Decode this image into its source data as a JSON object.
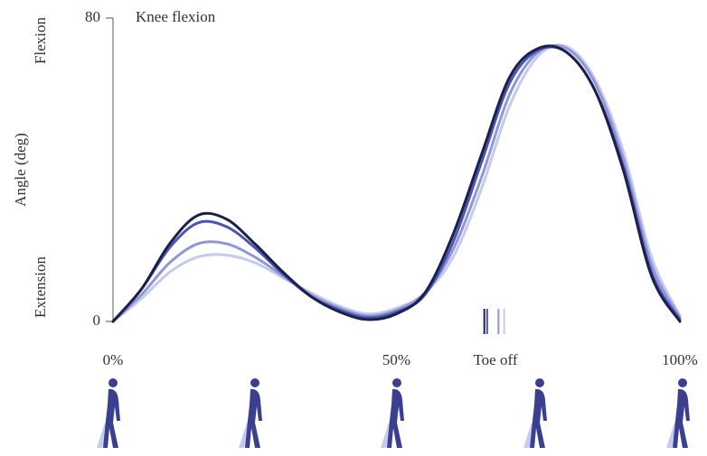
{
  "chart_data": {
    "type": "line",
    "title": "Knee flexion",
    "ylabel": "Angle (deg)",
    "ylabel_top": "Flexion",
    "ylabel_bottom": "Extension",
    "x": [
      0,
      5,
      10,
      15,
      20,
      25,
      30,
      35,
      40,
      45,
      50,
      55,
      60,
      65,
      70,
      75,
      80,
      85,
      90,
      95,
      100
    ],
    "series": [
      {
        "color": "#c5cbee",
        "values": [
          0,
          6,
          13,
          17,
          17.5,
          15.5,
          11.5,
          7.5,
          4,
          2,
          3.5,
          7.5,
          17,
          35,
          57,
          70,
          72.5,
          64,
          45,
          17,
          1.5
        ]
      },
      {
        "color": "#8f97d6",
        "values": [
          0,
          7,
          15.5,
          20.5,
          20.5,
          17,
          12,
          7,
          3.5,
          1.5,
          3,
          7.5,
          19,
          38,
          60,
          71,
          72,
          63,
          43,
          15,
          1
        ]
      },
      {
        "color": "#4a56b0",
        "values": [
          0,
          8.5,
          19.5,
          26,
          25,
          19.5,
          12.5,
          6.5,
          3,
          1,
          2.5,
          7,
          21,
          42,
          63,
          71.5,
          71,
          61,
          41,
          13,
          0.5
        ]
      },
      {
        "color": "#1c1f4a",
        "values": [
          0,
          8.5,
          20.5,
          28,
          27,
          20.5,
          13,
          6.5,
          2.5,
          0.5,
          2,
          7.5,
          23,
          44,
          64.5,
          72,
          71,
          61,
          40,
          12,
          0
        ]
      }
    ],
    "toe_off": {
      "label": "Toe off",
      "values": [
        65.5,
        66,
        68,
        69
      ],
      "colors": [
        "#1c1f4a",
        "#4a56b0",
        "#8f97d6",
        "#c5cbee"
      ]
    },
    "xlim": [
      0,
      100
    ],
    "ylim": [
      0,
      80
    ],
    "xticks": [
      {
        "value": 0,
        "label": "0%"
      },
      {
        "value": 50,
        "label": "50%"
      },
      {
        "value": 100,
        "label": "100%"
      }
    ],
    "yticks": [
      0,
      80
    ]
  }
}
